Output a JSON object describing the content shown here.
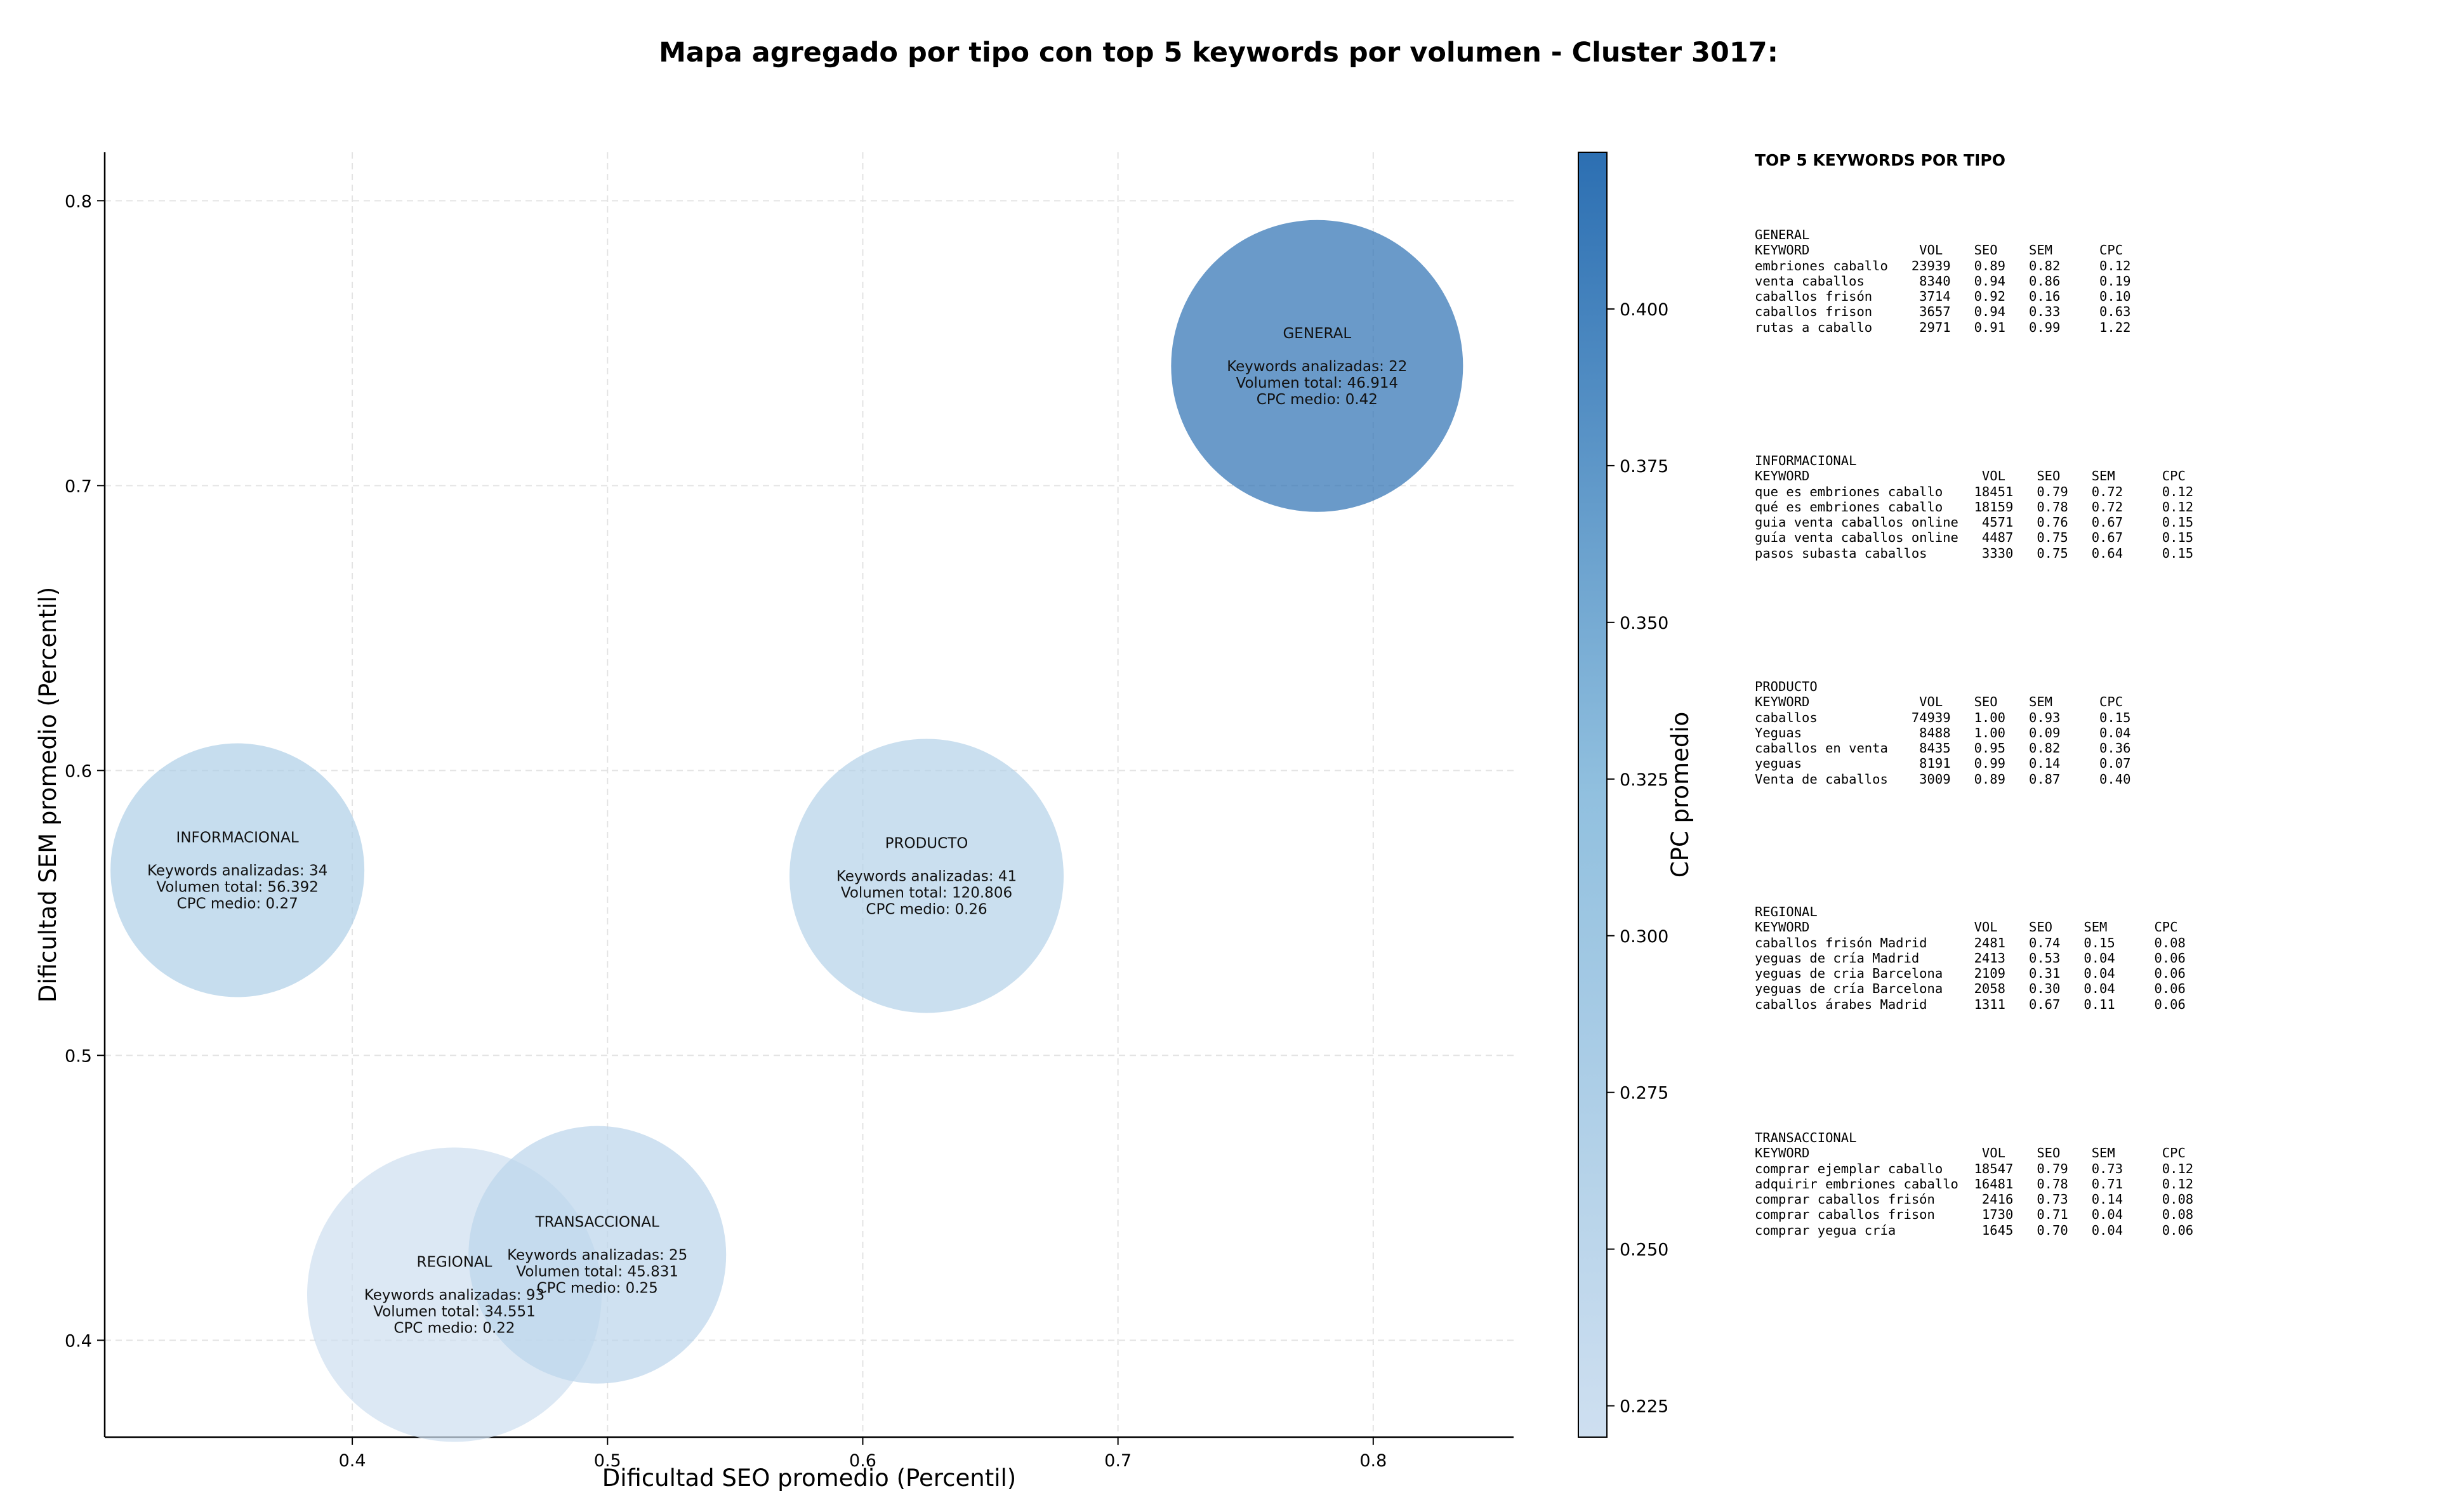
{
  "title": "Mapa agregado por tipo con top 5 keywords por volumen - Cluster 3017:",
  "chart_data": {
    "type": "scatter",
    "xlabel": "Dificultad SEO promedio (Percentil)",
    "ylabel": "Dificultad SEM promedio (Percentil)",
    "xlim": [
      0.303,
      0.855
    ],
    "ylim": [
      0.366,
      0.817
    ],
    "xticks": [
      "0.4",
      "0.5",
      "0.6",
      "0.7",
      "0.8"
    ],
    "xtick_values": [
      0.4,
      0.5,
      0.6,
      0.7,
      0.8
    ],
    "yticks": [
      "0.4",
      "0.5",
      "0.6",
      "0.7",
      "0.8"
    ],
    "ytick_values": [
      0.4,
      0.5,
      0.6,
      0.7,
      0.8
    ],
    "grid": true,
    "colorbar": {
      "label": "CPC promedio",
      "min": 0.22,
      "max": 0.425,
      "ticks": [
        "0.225",
        "0.250",
        "0.275",
        "0.300",
        "0.325",
        "0.350",
        "0.375",
        "0.400"
      ],
      "tick_values": [
        0.225,
        0.25,
        0.275,
        0.3,
        0.325,
        0.35,
        0.375,
        0.4
      ]
    },
    "bubbles": [
      {
        "name": "REGIONAL",
        "x": 0.44,
        "y": 0.416,
        "cpc": 0.22,
        "keywords": 93,
        "info": [
          "Keywords analizadas: 93",
          "Volumen total: 34.551",
          "CPC medio: 0.22"
        ]
      },
      {
        "name": "TRANSACCIONAL",
        "x": 0.496,
        "y": 0.43,
        "cpc": 0.25,
        "keywords": 25,
        "info": [
          "Keywords analizadas: 25",
          "Volumen total: 45.831",
          "CPC medio: 0.25"
        ]
      },
      {
        "name": "INFORMACIONAL",
        "x": 0.355,
        "y": 0.565,
        "cpc": 0.27,
        "keywords": 34,
        "info": [
          "Keywords analizadas: 34",
          "Volumen total: 56.392",
          "CPC medio: 0.27"
        ]
      },
      {
        "name": "PRODUCTO",
        "x": 0.625,
        "y": 0.563,
        "cpc": 0.26,
        "keywords": 41,
        "info": [
          "Keywords analizadas: 41",
          "Volumen total: 120.806",
          "CPC medio: 0.26"
        ]
      },
      {
        "name": "GENERAL",
        "x": 0.778,
        "y": 0.742,
        "cpc": 0.42,
        "keywords": 22,
        "info": [
          "Keywords analizadas: 22",
          "Volumen total: 46.914",
          "CPC medio: 0.42"
        ]
      }
    ]
  },
  "keyword_table": {
    "title": "TOP 5 KEYWORDS POR TIPO",
    "groups": [
      {
        "lines": [
          "GENERAL",
          "KEYWORD              VOL    SEO    SEM      CPC",
          "embriones caballo   23939   0.89   0.82     0.12",
          "venta caballos       8340   0.94   0.86     0.19",
          "caballos frisón      3714   0.92   0.16     0.10",
          "caballos frison      3657   0.94   0.33     0.63",
          "rutas a caballo      2971   0.91   0.99     1.22"
        ]
      },
      {
        "lines": [
          "INFORMACIONAL",
          "KEYWORD                      VOL    SEO    SEM      CPC",
          "que es embriones caballo    18451   0.79   0.72     0.12",
          "qué es embriones caballo    18159   0.78   0.72     0.12",
          "guia venta caballos online   4571   0.76   0.67     0.15",
          "guía venta caballos online   4487   0.75   0.67     0.15",
          "pasos subasta caballos       3330   0.75   0.64     0.15"
        ]
      },
      {
        "lines": [
          "PRODUCTO",
          "KEYWORD              VOL    SEO    SEM      CPC",
          "caballos            74939   1.00   0.93     0.15",
          "Yeguas               8488   1.00   0.09     0.04",
          "caballos en venta    8435   0.95   0.82     0.36",
          "yeguas               8191   0.99   0.14     0.07",
          "Venta de caballos    3009   0.89   0.87     0.40"
        ]
      },
      {
        "lines": [
          "REGIONAL",
          "KEYWORD                     VOL    SEO    SEM      CPC",
          "caballos frisón Madrid      2481   0.74   0.15     0.08",
          "yeguas de cría Madrid       2413   0.53   0.04     0.06",
          "yeguas de cria Barcelona    2109   0.31   0.04     0.06",
          "yeguas de cría Barcelona    2058   0.30   0.04     0.06",
          "caballos árabes Madrid      1311   0.67   0.11     0.06"
        ]
      },
      {
        "lines": [
          "TRANSACCIONAL",
          "KEYWORD                      VOL    SEO    SEM      CPC",
          "comprar ejemplar caballo    18547   0.79   0.73     0.12",
          "adquirir embriones caballo  16481   0.78   0.71     0.12",
          "comprar caballos frisón      2416   0.73   0.14     0.08",
          "comprar caballos frison      1730   0.71   0.04     0.08",
          "comprar yegua cría           1645   0.70   0.04     0.06"
        ]
      }
    ]
  }
}
